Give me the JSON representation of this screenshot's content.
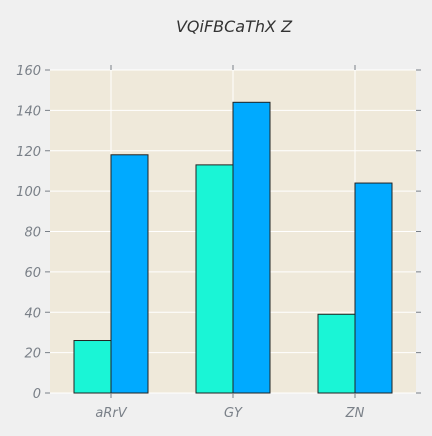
{
  "chart_data": {
    "type": "bar",
    "title": "VQiFBCaThX Z",
    "xlabel": "",
    "ylabel": "",
    "categories": [
      "aRrV",
      "GY",
      "ZN"
    ],
    "series": [
      {
        "values": [
          26,
          113,
          39
        ]
      },
      {
        "values": [
          118,
          144,
          104
        ]
      }
    ],
    "ylim": [
      0,
      160
    ],
    "yticks": [
      0,
      20,
      40,
      60,
      80,
      100,
      120,
      140,
      160
    ],
    "grid": true,
    "legend": "none"
  },
  "colors": {
    "page_background": "#f0f0f0",
    "plot_background": "#efe9da",
    "grid": "#ffffff",
    "series": [
      "#1af5d6",
      "#00aaff"
    ],
    "bar_edge": "#222222",
    "tick_mark": "#7a8088"
  }
}
